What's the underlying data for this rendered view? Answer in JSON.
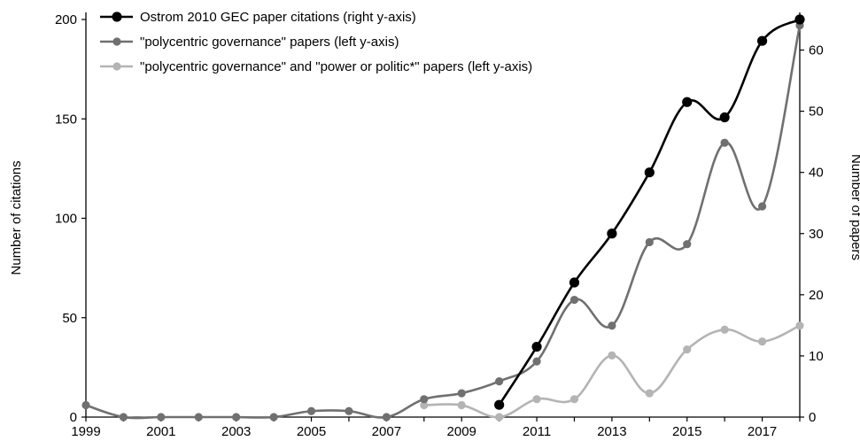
{
  "chart_data": {
    "type": "line",
    "x": [
      1999,
      2000,
      2001,
      2002,
      2003,
      2004,
      2005,
      2006,
      2007,
      2008,
      2009,
      2010,
      2011,
      2012,
      2013,
      2014,
      2015,
      2016,
      2017,
      2018
    ],
    "x_tick_labels": [
      "1999",
      "2001",
      "2003",
      "2005",
      "2007",
      "2009",
      "2011",
      "2013",
      "2015",
      "2017"
    ],
    "xlim": [
      1999,
      2018
    ],
    "y_left": {
      "label": "Number of citations",
      "ylim": [
        0,
        200
      ],
      "ticks": [
        "0",
        "50",
        "100",
        "150",
        "200"
      ]
    },
    "y_right": {
      "label": "Number of papers",
      "ylim": [
        0,
        65
      ],
      "ticks": [
        "0",
        "10",
        "20",
        "30",
        "40",
        "50",
        "60"
      ]
    },
    "legend_position": "top-left",
    "series": [
      {
        "name": "Ostrom 2010 GEC paper citations (right y-axis)",
        "axis": "right",
        "color": "#000000",
        "values": [
          null,
          null,
          null,
          null,
          null,
          null,
          null,
          null,
          null,
          null,
          null,
          2,
          11.5,
          22,
          30,
          40,
          51.5,
          49,
          61.5,
          65
        ]
      },
      {
        "name": "\"polycentric governance\" papers (left y-axis)",
        "axis": "left",
        "color": "#707070",
        "values": [
          6,
          0,
          0,
          0,
          0,
          0,
          3,
          3,
          0,
          9,
          12,
          18,
          28,
          59,
          46,
          88,
          87,
          138,
          106,
          197
        ]
      },
      {
        "name": "\"polycentric governance\" and \"power or politic*\" papers (left y-axis)",
        "axis": "left",
        "color": "#b4b4b4",
        "values": [
          null,
          null,
          null,
          null,
          null,
          null,
          null,
          null,
          null,
          6,
          6,
          0,
          9,
          9,
          31,
          12,
          34,
          44,
          38,
          46
        ]
      }
    ]
  }
}
